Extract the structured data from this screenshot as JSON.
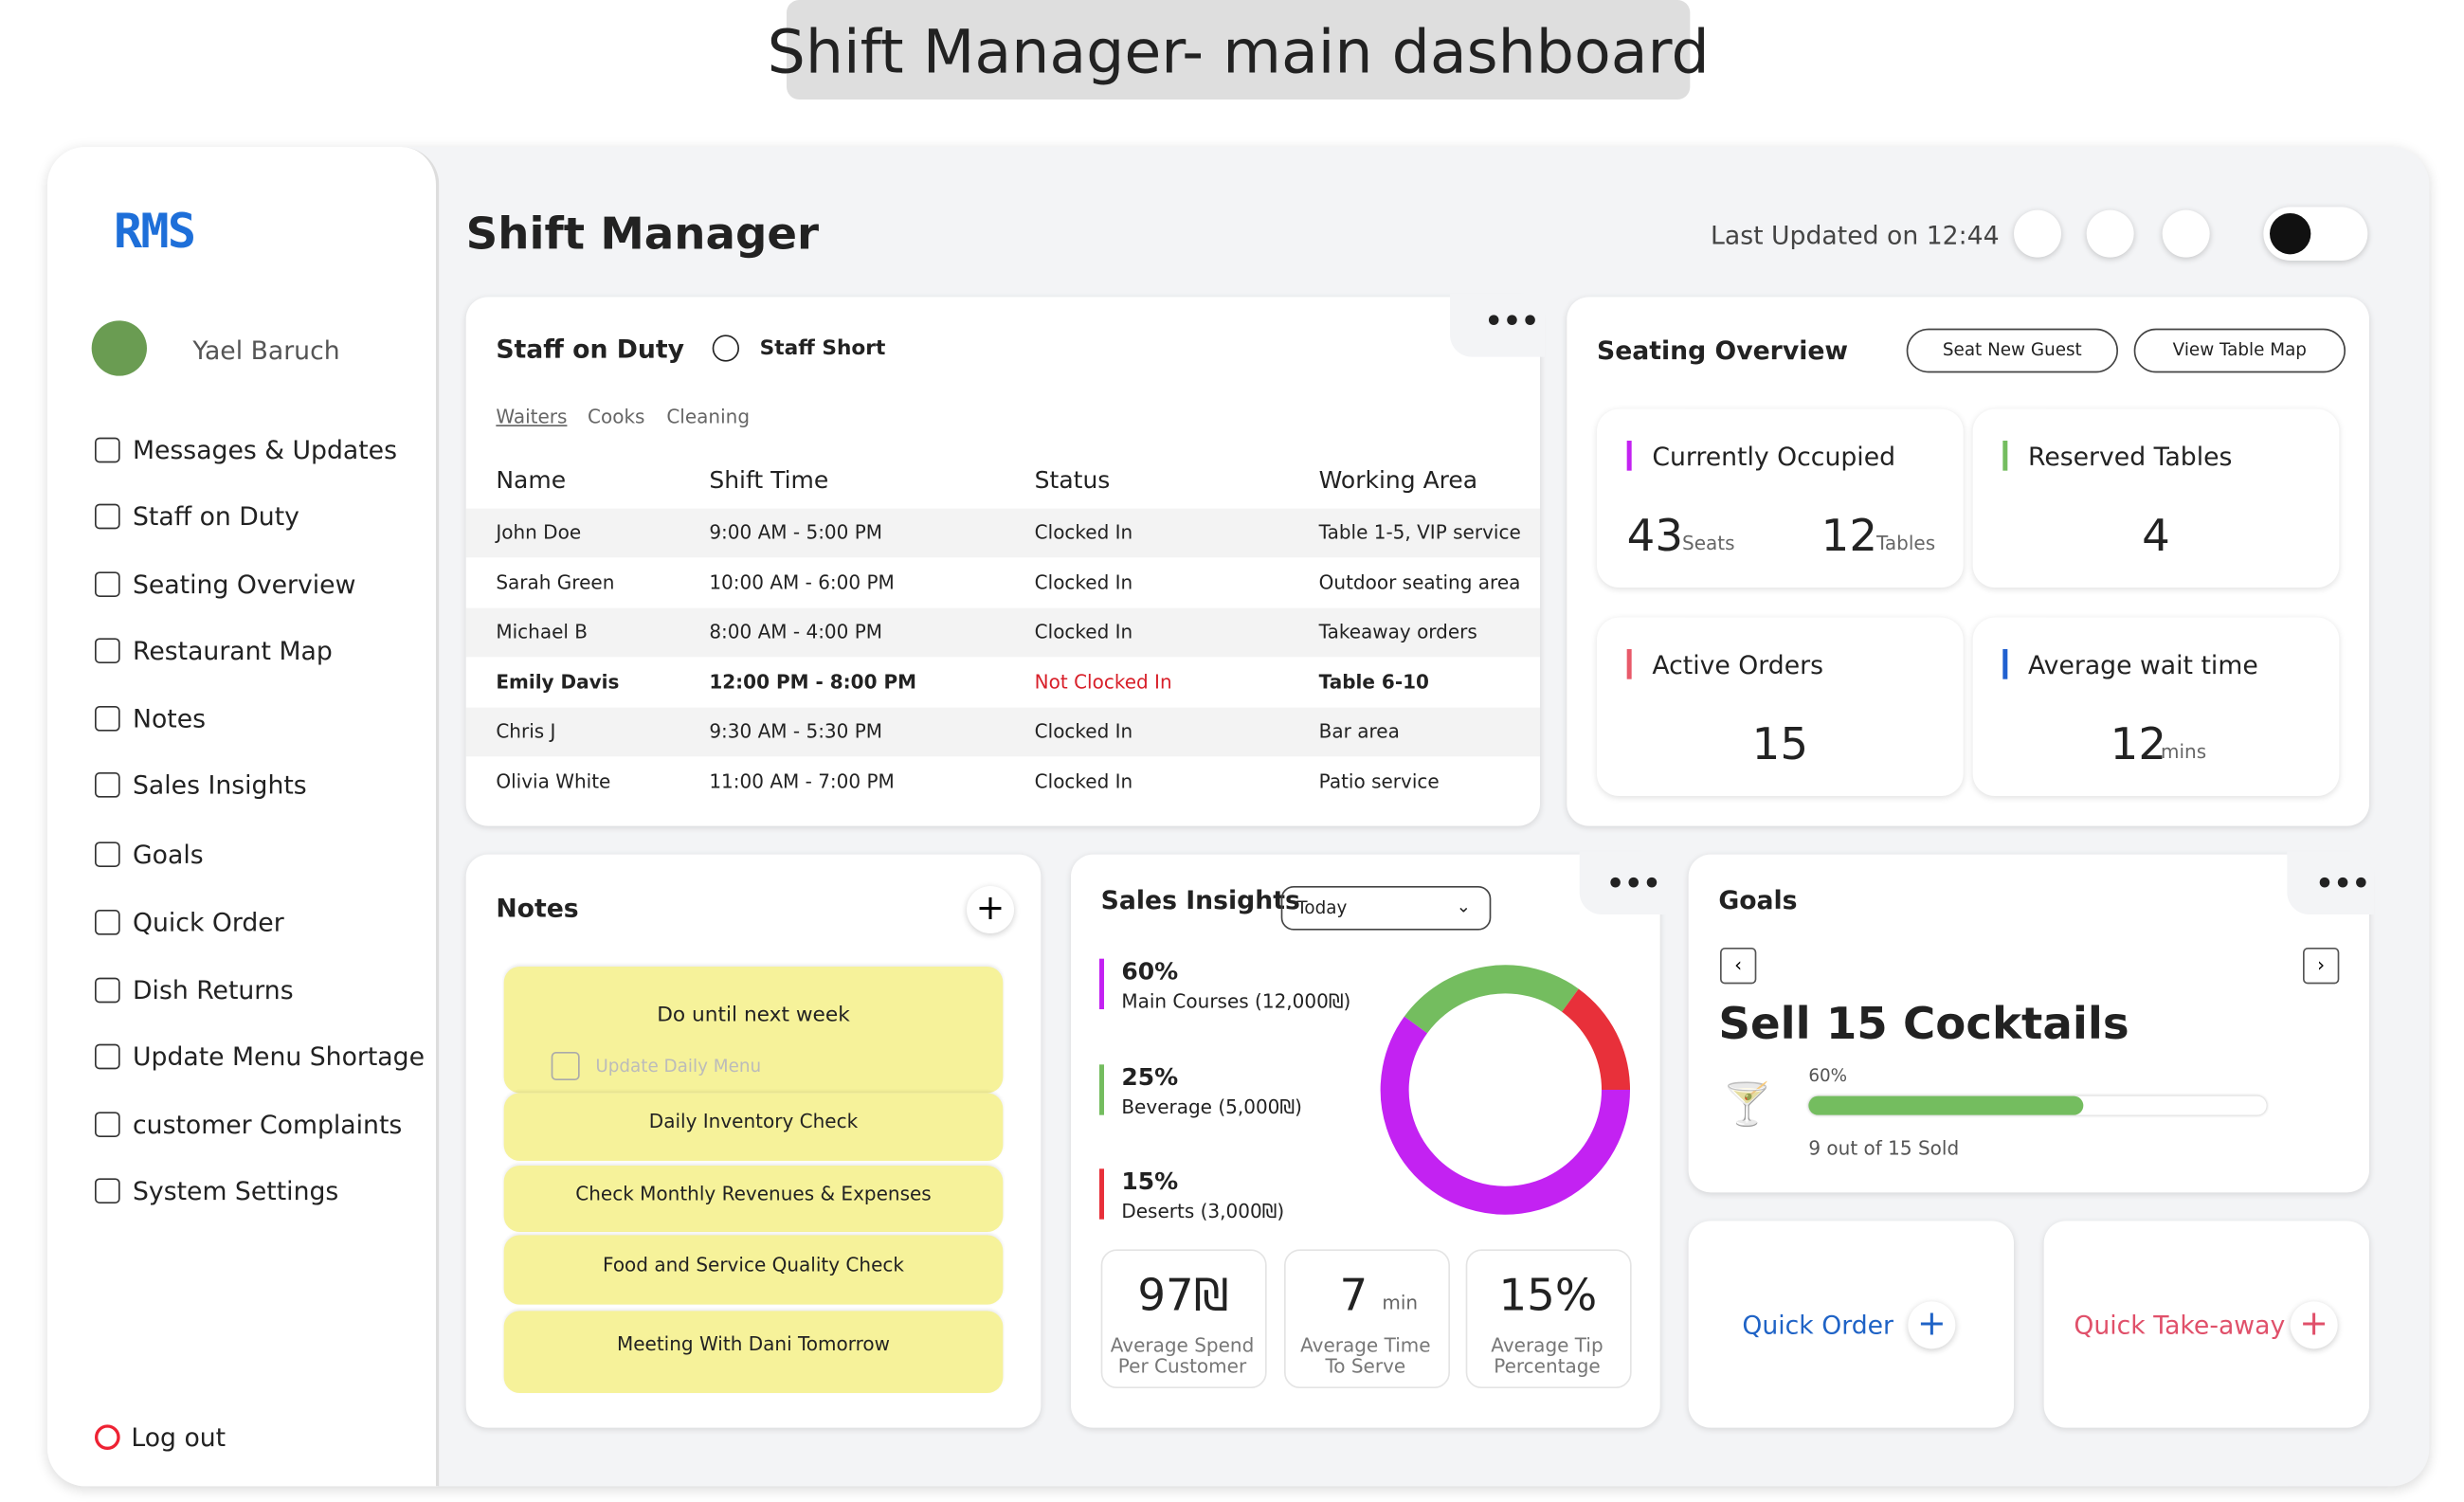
{
  "header": {
    "title": "Shift Manager- main dashboard"
  },
  "sidebar": {
    "logo": "RMS",
    "user": "Yael Baruch",
    "nav": [
      "Messages & Updates",
      "Staff on Duty",
      "Seating Overview",
      "Restaurant Map",
      "Notes",
      "Sales Insights",
      "Goals",
      "Quick Order",
      "Dish Returns",
      "Update Menu Shortage",
      "customer Complaints",
      "System Settings"
    ],
    "logout": "Log out"
  },
  "topbar": {
    "title": "Shift Manager",
    "last_updated": "Last Updated on 12:44"
  },
  "staff": {
    "title": "Staff on Duty",
    "alert": "Staff Short",
    "tabs": [
      "Waiters",
      "Cooks",
      "Cleaning"
    ],
    "columns": [
      "Name",
      "Shift Time",
      "Status",
      "Working Area"
    ],
    "rows": [
      [
        "John Doe",
        "9:00 AM - 5:00 PM",
        "Clocked In",
        "Table 1-5, VIP service"
      ],
      [
        "Sarah Green",
        "10:00 AM - 6:00 PM",
        "Clocked In",
        "Outdoor seating area"
      ],
      [
        "Michael B",
        "8:00 AM - 4:00 PM",
        "Clocked In",
        "Takeaway orders"
      ],
      [
        "Emily Davis",
        "12:00 PM - 8:00 PM",
        "Not Clocked In",
        "Table 6-10"
      ],
      [
        "Chris J",
        "9:30 AM - 5:30 PM",
        "Clocked In",
        "Bar area"
      ],
      [
        "Olivia White",
        "11:00 AM - 7:00 PM",
        "Clocked In",
        "Patio service"
      ]
    ]
  },
  "seating": {
    "title": "Seating Overview",
    "buttons": [
      "Seat New Guest",
      "View Table Map"
    ],
    "occupied": {
      "label": "Currently Occupied",
      "seats": "43",
      "seats_unit": "Seats",
      "tables": "12",
      "tables_unit": "Tables"
    },
    "reserved": {
      "label": "Reserved Tables",
      "value": "4"
    },
    "orders": {
      "label": "Active Orders",
      "value": "15"
    },
    "wait": {
      "label": "Average wait time",
      "value": "12",
      "unit": "mins"
    }
  },
  "notes": {
    "title": "Notes",
    "first": {
      "title": "Do until next week",
      "task": "Update Daily Menu"
    },
    "items": [
      "Daily Inventory Check",
      "Check Monthly Revenues & Expenses",
      "Food and Service Quality Check",
      "Meeting With Dani Tomorrow"
    ]
  },
  "sales": {
    "title": "Sales Insights",
    "period": "Today",
    "segments": [
      {
        "value": 60,
        "value_label": "60%",
        "name": "Main Courses (12,000₪)",
        "color": "#c322f2"
      },
      {
        "value": 25,
        "value_label": "25%",
        "name": "Beverage (5,000₪)",
        "color": "#74bd5f"
      },
      {
        "value": 15,
        "value_label": "15%",
        "name": "Deserts (3,000₪)",
        "color": "#e8303a"
      }
    ],
    "stats": [
      {
        "value": "97₪",
        "label": "Average Spend Per Customer"
      },
      {
        "value": "7",
        "unit": "min",
        "label": "Average Time To Serve"
      },
      {
        "value": "15%",
        "label": "Average Tip Percentage"
      }
    ]
  },
  "goals": {
    "title": "Goals",
    "goal": "Sell 15 Cocktails",
    "progress": 60,
    "progress_label": "60%",
    "sold": "9 out of 15 Sold"
  },
  "quick": [
    "Quick Order",
    "Quick Take-away"
  ]
}
